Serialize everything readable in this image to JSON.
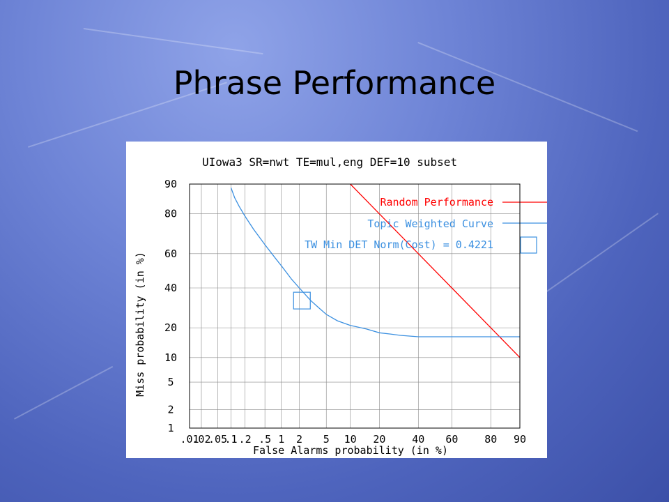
{
  "slide": {
    "title": "Phrase Performance"
  },
  "colors": {
    "random": "#ff0000",
    "curve": "#3a8fe0",
    "grid": "#888888"
  },
  "chart_data": {
    "type": "line",
    "title": "UIowa3 SR=nwt TE=mul,eng DEF=10 subset",
    "xlabel": "False Alarms probability (in %)",
    "ylabel": "Miss probability (in %)",
    "scale": "normal-deviate (DET)",
    "grid": true,
    "legend_position": "top-right",
    "xticks": [
      ".01",
      ".02",
      ".05",
      ".1",
      ".2",
      ".5",
      "1",
      "2",
      "5",
      "10",
      "20",
      "40",
      "60",
      "80",
      "90"
    ],
    "xtick_values": [
      0.01,
      0.02,
      0.05,
      0.1,
      0.2,
      0.5,
      1,
      2,
      5,
      10,
      20,
      40,
      60,
      80,
      90
    ],
    "yticks": [
      "1",
      "2",
      "5",
      "10",
      "20",
      "40",
      "60",
      "80",
      "90"
    ],
    "ytick_values": [
      1,
      2,
      5,
      10,
      20,
      40,
      60,
      80,
      90
    ],
    "xlim": [
      0.01,
      90
    ],
    "ylim": [
      1,
      90
    ],
    "series": [
      {
        "name": "Random Performance",
        "color": "#ff0000",
        "x": [
          10,
          20,
          40,
          60,
          80,
          90
        ],
        "y": [
          90,
          80,
          60,
          40,
          20,
          10
        ]
      },
      {
        "name": "Topic Weighted Curve",
        "color": "#3a8fe0",
        "x": [
          0.1,
          0.12,
          0.15,
          0.2,
          0.3,
          0.5,
          0.8,
          1,
          1.5,
          2,
          3,
          4,
          5,
          7,
          10,
          15,
          20,
          25,
          30,
          40,
          60,
          80,
          90
        ],
        "y": [
          89,
          86,
          83,
          79,
          73,
          65,
          57,
          53,
          45,
          40,
          33,
          29,
          26,
          23,
          21,
          19.5,
          18,
          17.5,
          17,
          16.5,
          16.5,
          16.5,
          16.5
        ]
      }
    ],
    "annotations": [
      {
        "label": "TW Min DET Norm(Cost) = 0.4221",
        "x": 2.2,
        "y": 33
      }
    ]
  }
}
